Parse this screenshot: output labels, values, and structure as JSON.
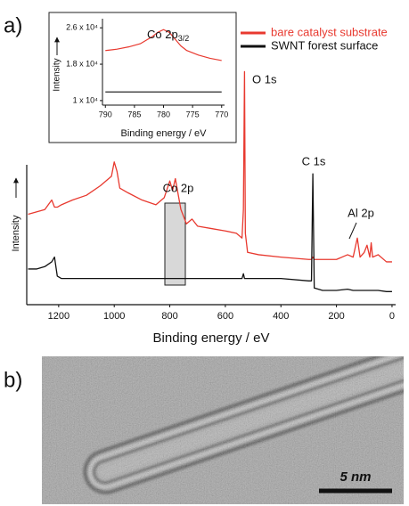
{
  "panel_labels": [
    "a)",
    "b)"
  ],
  "image": {
    "scale_bar": "5 nm"
  },
  "chart_data": [
    {
      "type": "line",
      "xlabel": "Binding energy / eV",
      "ylabel": "Intensity",
      "xlim": [
        1315,
        -13
      ],
      "xticks": [
        1200,
        1000,
        800,
        600,
        400,
        200,
        0
      ],
      "ylim": [
        0,
        100
      ],
      "legend": "upper right",
      "annotations": [
        "O 1s",
        "C 1s",
        "Co 2p",
        "Al 2p"
      ],
      "x": [
        1310,
        1280,
        1250,
        1225,
        1215,
        1205,
        1190,
        1150,
        1100,
        1050,
        1010,
        1000,
        990,
        980,
        950,
        900,
        850,
        820,
        800,
        790,
        780,
        760,
        740,
        720,
        700,
        650,
        600,
        560,
        540,
        535,
        531,
        528,
        520,
        480,
        400,
        300,
        290,
        285,
        280,
        250,
        200,
        160,
        140,
        125,
        115,
        100,
        90,
        80,
        75,
        70,
        50,
        20,
        0
      ],
      "series": [
        {
          "name": "bare catalyst substrate",
          "color": "#e8392f",
          "values": [
            38,
            39,
            40,
            44,
            41,
            41,
            42,
            44,
            46,
            50,
            54,
            60,
            56,
            49,
            47,
            44,
            42,
            45,
            52,
            48,
            53,
            40,
            34,
            36,
            33,
            32,
            31,
            30,
            28,
            40,
            98,
            30,
            22,
            21,
            20,
            19,
            19,
            20,
            19,
            19,
            19,
            21,
            20,
            28,
            20,
            22,
            25,
            20,
            26,
            20,
            21,
            18,
            18
          ]
        },
        {
          "name": "SWNT forest surface",
          "color": "#111111",
          "values": [
            15,
            15,
            16,
            18,
            20,
            12,
            11,
            11,
            11,
            11,
            11,
            11,
            11,
            11,
            11,
            11,
            11,
            11,
            11,
            11,
            11,
            11,
            11,
            11,
            11,
            11,
            11,
            11,
            11,
            13,
            11,
            11,
            11,
            11,
            11,
            10,
            10,
            55,
            7,
            6,
            6,
            6.5,
            6,
            6,
            6,
            6,
            6,
            6,
            6,
            6,
            6,
            5.5,
            5.5
          ]
        }
      ]
    },
    {
      "type": "line",
      "label": "Co 2p",
      "label_sub": "3/2",
      "xlabel": "Binding energy / eV",
      "ylabel": "Intensity",
      "xlim": [
        790.5,
        769.5
      ],
      "xticks": [
        790,
        785,
        780,
        775,
        770
      ],
      "ylim": [
        9000,
        28000
      ],
      "yticks": [
        {
          "value": 10000,
          "label": "1 x 10⁴"
        },
        {
          "value": 18000,
          "label": "1.8 x 10⁴"
        },
        {
          "value": 26000,
          "label": "2.6 x 10⁴"
        }
      ],
      "x": [
        790,
        788,
        786,
        784,
        782,
        781,
        780,
        779,
        778,
        777,
        776,
        774,
        772,
        770
      ],
      "series": [
        {
          "name": "bare catalyst substrate",
          "color": "#e8392f",
          "values": [
            21000,
            21300,
            21800,
            22500,
            24000,
            25000,
            25600,
            25000,
            23500,
            22000,
            21000,
            20000,
            19300,
            18800
          ]
        },
        {
          "name": "SWNT forest surface",
          "color": "#111111",
          "values": [
            11900,
            11900,
            11900,
            11900,
            11900,
            11900,
            11900,
            11900,
            11900,
            11900,
            11900,
            11900,
            11900,
            11900
          ]
        }
      ]
    }
  ]
}
